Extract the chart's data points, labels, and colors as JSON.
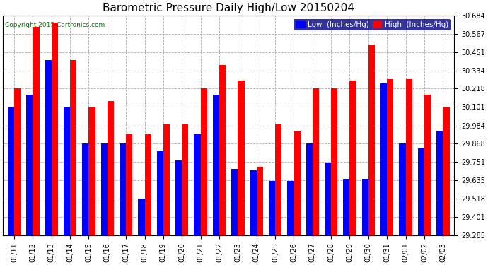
{
  "title": "Barometric Pressure Daily High/Low 20150204",
  "copyright": "Copyright 2015 Cartronics.com",
  "legend_low": "Low  (Inches/Hg)",
  "legend_high": "High  (Inches/Hg)",
  "dates": [
    "01/11",
    "01/12",
    "01/13",
    "01/14",
    "01/15",
    "01/16",
    "01/17",
    "01/18",
    "01/19",
    "01/20",
    "01/21",
    "01/22",
    "01/23",
    "01/24",
    "01/25",
    "01/26",
    "01/27",
    "01/28",
    "01/29",
    "01/30",
    "01/31",
    "02/01",
    "02/02",
    "02/03"
  ],
  "low_values": [
    30.1,
    30.18,
    30.4,
    30.1,
    29.87,
    29.87,
    29.87,
    29.52,
    29.82,
    29.76,
    29.93,
    30.18,
    29.71,
    29.7,
    29.63,
    29.63,
    29.87,
    29.75,
    29.64,
    29.64,
    30.25,
    29.87,
    29.84,
    29.95
  ],
  "high_values": [
    30.22,
    30.61,
    30.64,
    30.4,
    30.1,
    30.14,
    29.93,
    29.93,
    29.99,
    29.99,
    30.22,
    30.37,
    30.27,
    29.72,
    29.99,
    29.95,
    30.22,
    30.22,
    30.27,
    30.5,
    30.28,
    30.28,
    30.18,
    30.1
  ],
  "ylim_min": 29.285,
  "ylim_max": 30.684,
  "yticks": [
    29.285,
    29.401,
    29.518,
    29.635,
    29.751,
    29.868,
    29.984,
    30.101,
    30.218,
    30.334,
    30.451,
    30.567,
    30.684
  ],
  "bar_width": 0.35,
  "low_color": "#0000ff",
  "high_color": "#ff0000",
  "bg_color": "#ffffff",
  "grid_color": "#aaaaaa",
  "title_fontsize": 11,
  "tick_fontsize": 7,
  "legend_fontsize": 7.5
}
